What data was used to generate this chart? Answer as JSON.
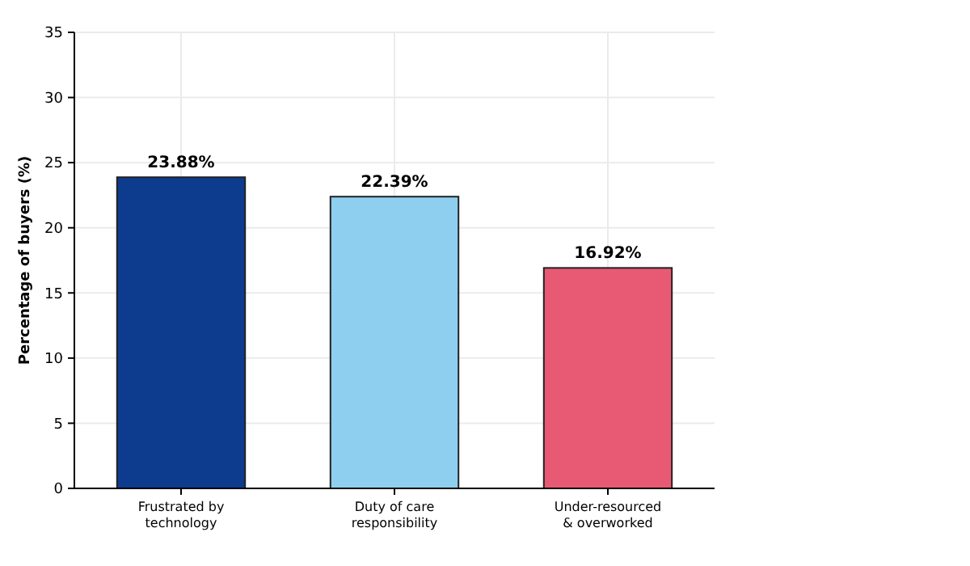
{
  "chart_data": {
    "type": "bar",
    "categories": [
      "Frustrated by technology",
      "Duty of care responsibility",
      "Under-resourced & overworked"
    ],
    "colors": [
      "#0d3b8e",
      "#8ecfef",
      "#e85a74"
    ],
    "values": [
      23.88,
      22.39,
      16.92
    ],
    "value_labels": [
      "23.88%",
      "22.39%",
      "16.92%"
    ],
    "ylabel": "Percentage of buyers (%)",
    "ylim": [
      0,
      35
    ],
    "yticks": [
      0,
      5,
      10,
      15,
      20,
      25,
      30,
      35
    ],
    "grid": true
  }
}
